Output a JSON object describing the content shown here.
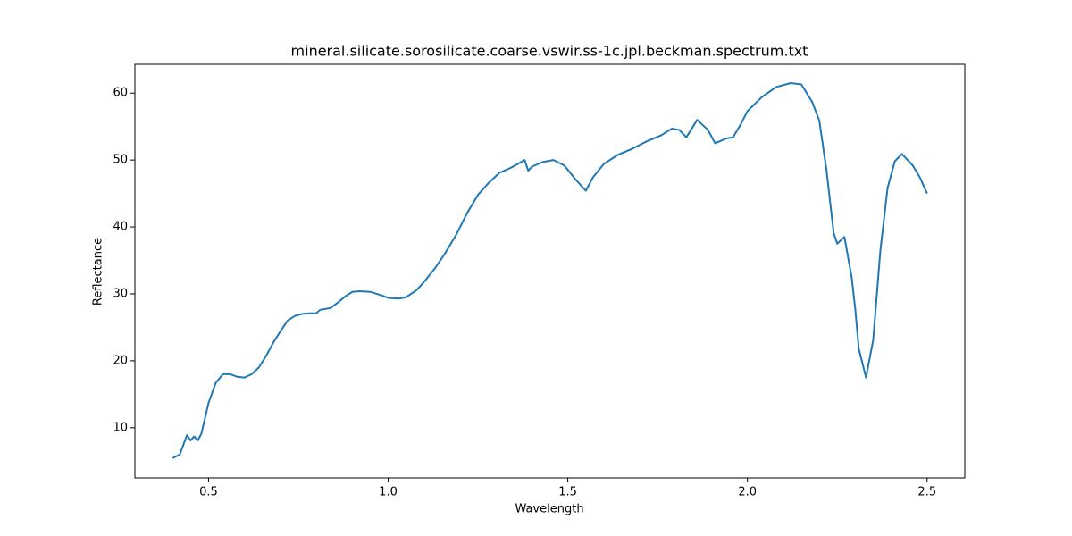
{
  "chart_data": {
    "type": "line",
    "title": "mineral.silicate.sorosilicate.coarse.vswir.ss-1c.jpl.beckman.spectrum.txt",
    "x_label": "Wavelength",
    "y_label": "Reflectance",
    "xlim": [
      0.295,
      2.605
    ],
    "ylim": [
      2.5,
      64.3
    ],
    "xticks": [
      0.5,
      {
        "value": 1,
        "label": "1.0"
      },
      1.5,
      {
        "value": 2,
        "label": "2.0"
      },
      2.5
    ],
    "yticks": [
      10,
      20,
      30,
      40,
      50,
      60
    ],
    "grid": false,
    "series": [
      {
        "color": "#1f77b4",
        "x": [
          0.4,
          0.42,
          0.44,
          0.45,
          0.46,
          0.47,
          0.48,
          0.5,
          0.52,
          0.54,
          0.56,
          0.58,
          0.6,
          0.62,
          0.64,
          0.66,
          0.68,
          0.7,
          0.72,
          0.74,
          0.76,
          0.78,
          0.8,
          0.81,
          0.84,
          0.86,
          0.88,
          0.9,
          0.92,
          0.95,
          0.98,
          1.0,
          1.03,
          1.05,
          1.08,
          1.1,
          1.13,
          1.16,
          1.19,
          1.22,
          1.25,
          1.28,
          1.31,
          1.34,
          1.37,
          1.38,
          1.39,
          1.4,
          1.43,
          1.46,
          1.49,
          1.52,
          1.55,
          1.57,
          1.6,
          1.64,
          1.68,
          1.72,
          1.76,
          1.79,
          1.81,
          1.83,
          1.86,
          1.89,
          1.91,
          1.94,
          1.96,
          1.98,
          2.0,
          2.04,
          2.08,
          2.12,
          2.15,
          2.18,
          2.2,
          2.22,
          2.24,
          2.25,
          2.27,
          2.29,
          2.3,
          2.31,
          2.33,
          2.35,
          2.37,
          2.39,
          2.41,
          2.43,
          2.46,
          2.48,
          2.5
        ],
        "values": [
          5.45,
          6.0,
          8.9,
          8.1,
          8.7,
          8.1,
          9.1,
          13.7,
          16.7,
          18.0,
          18.0,
          17.6,
          17.5,
          18.0,
          19.0,
          20.7,
          22.7,
          24.4,
          26.0,
          26.7,
          27.0,
          27.1,
          27.1,
          27.6,
          27.9,
          28.7,
          29.6,
          30.3,
          30.4,
          30.3,
          29.8,
          29.4,
          29.3,
          29.5,
          30.6,
          31.8,
          33.8,
          36.2,
          38.9,
          42.1,
          44.8,
          46.6,
          48.1,
          48.8,
          49.7,
          50.0,
          48.4,
          49.0,
          49.7,
          50.0,
          49.2,
          47.2,
          45.4,
          47.4,
          49.4,
          50.8,
          51.7,
          52.8,
          53.7,
          54.7,
          54.5,
          53.4,
          56.0,
          54.5,
          52.5,
          53.2,
          53.4,
          55.2,
          57.3,
          59.4,
          60.9,
          61.5,
          61.3,
          58.7,
          55.9,
          48.5,
          39.1,
          37.5,
          38.5,
          32.5,
          27.8,
          21.8,
          17.5,
          23.1,
          36.5,
          45.8,
          49.8,
          50.9,
          49.2,
          47.4,
          45.0
        ]
      }
    ]
  }
}
